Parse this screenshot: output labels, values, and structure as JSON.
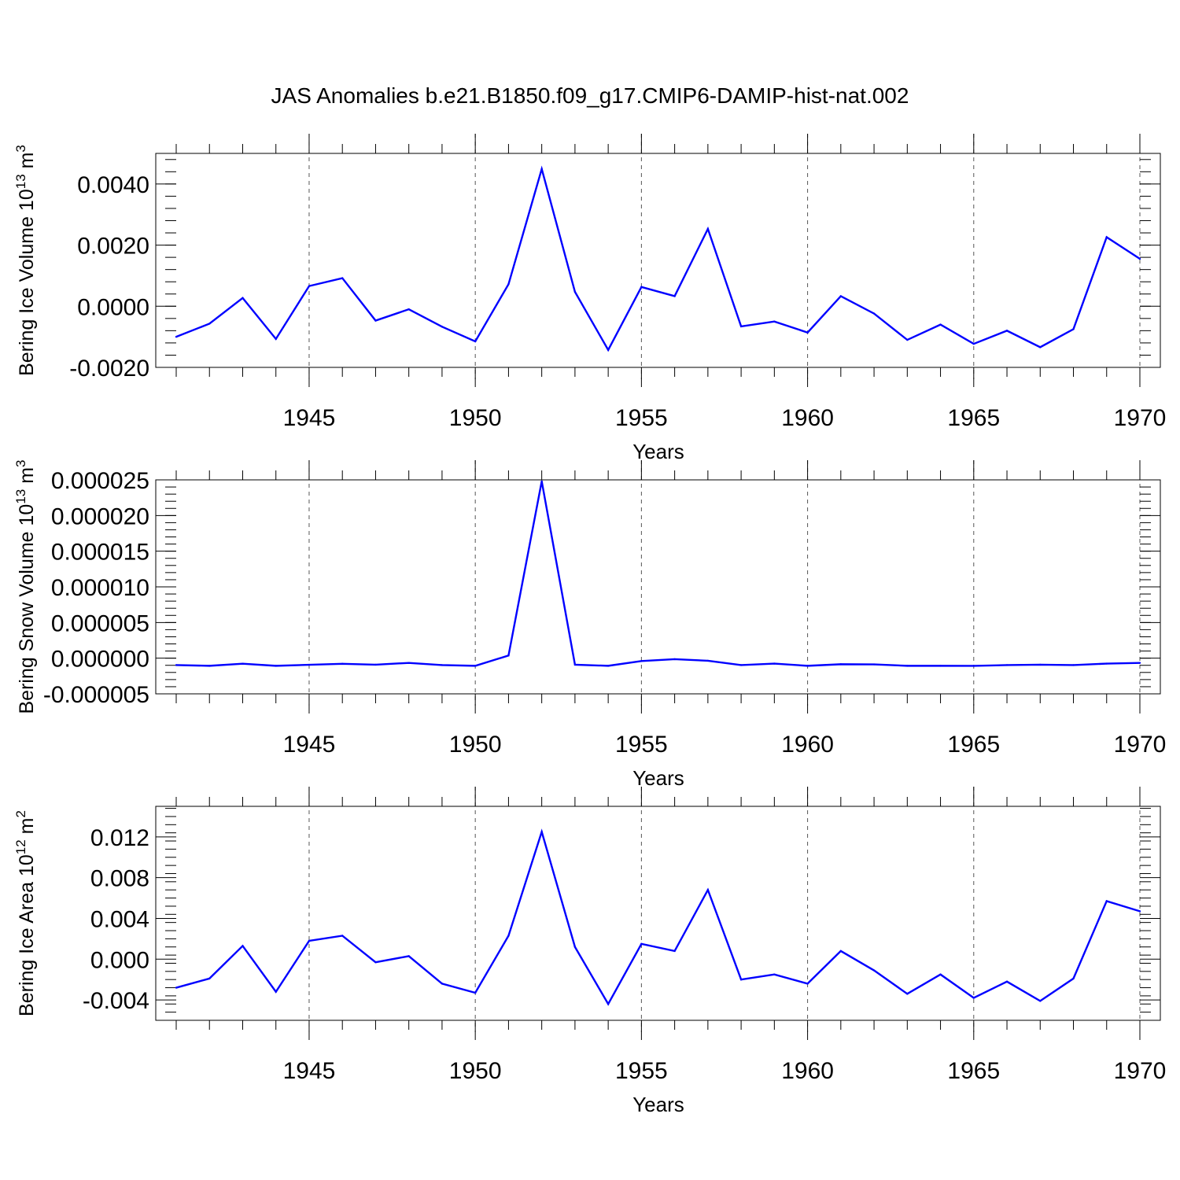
{
  "title": "JAS Anomalies b.e21.B1850.f09_g17.CMIP6-DAMIP-hist-nat.002",
  "line_color": "#0000ff",
  "chart_data": [
    {
      "type": "line",
      "ylabel_main": "Bering Ice Volume 10",
      "ylabel_sup": "13",
      "ylabel_unit": " m",
      "ylabel_unit_sup": "3",
      "xlabel": "Years",
      "xlim": [
        1941,
        1970
      ],
      "ylim": [
        -0.002,
        0.005
      ],
      "yticks": [
        -0.002,
        0.0,
        0.002,
        0.004
      ],
      "ytick_labels": [
        "-0.0020",
        "0.0000",
        "0.0020",
        "0.0040"
      ],
      "xticks": [
        1945,
        1950,
        1955,
        1960,
        1965,
        1970
      ],
      "xtick_labels": [
        "1945",
        "1950",
        "1955",
        "1960",
        "1965",
        "1970"
      ],
      "x": [
        1941,
        1942,
        1943,
        1944,
        1945,
        1946,
        1947,
        1948,
        1949,
        1950,
        1951,
        1952,
        1953,
        1954,
        1955,
        1956,
        1957,
        1958,
        1959,
        1960,
        1961,
        1962,
        1963,
        1964,
        1965,
        1966,
        1967,
        1968,
        1969,
        1970
      ],
      "values": [
        -0.001,
        -0.00057,
        0.00027,
        -0.00107,
        0.00066,
        0.00092,
        -0.00047,
        -0.0001,
        -0.00067,
        -0.00115,
        0.00072,
        0.00449,
        0.00047,
        -0.00143,
        0.00063,
        0.00033,
        0.00253,
        -0.00066,
        -0.0005,
        -0.00086,
        0.00033,
        -0.00024,
        -0.0011,
        -0.0006,
        -0.00123,
        -0.0008,
        -0.00134,
        -0.00075,
        0.00226,
        0.00155
      ]
    },
    {
      "type": "line",
      "ylabel_main": "Bering Snow Volume 10",
      "ylabel_sup": "13",
      "ylabel_unit": " m",
      "ylabel_unit_sup": "3",
      "xlabel": "Years",
      "xlim": [
        1941,
        1970
      ],
      "ylim": [
        -5e-06,
        2.5e-05
      ],
      "yticks": [
        -5e-06,
        0.0,
        5e-06,
        1e-05,
        1.5e-05,
        2e-05,
        2.5e-05
      ],
      "ytick_labels": [
        "-0.000005",
        "0.000000",
        "0.000005",
        "0.000010",
        "0.000015",
        "0.000020",
        "0.000025"
      ],
      "xticks": [
        1945,
        1950,
        1955,
        1960,
        1965,
        1970
      ],
      "xtick_labels": [
        "1945",
        "1950",
        "1955",
        "1960",
        "1965",
        "1970"
      ],
      "x": [
        1941,
        1942,
        1943,
        1944,
        1945,
        1946,
        1947,
        1948,
        1949,
        1950,
        1951,
        1952,
        1953,
        1954,
        1955,
        1956,
        1957,
        1958,
        1959,
        1960,
        1961,
        1962,
        1963,
        1964,
        1965,
        1966,
        1967,
        1968,
        1969,
        1970
      ],
      "values": [
        -9.7e-07,
        -1.07e-06,
        -7.7e-07,
        -1.07e-06,
        -9.3e-07,
        -7.9e-07,
        -9.1e-07,
        -6.6e-07,
        -9.7e-07,
        -1.07e-06,
        3.7e-07,
        2.48e-05,
        -9.1e-07,
        -1.07e-06,
        -4e-07,
        -1.4e-07,
        -3.6e-07,
        -9.7e-07,
        -7.6e-07,
        -1.07e-06,
        -8.5e-07,
        -8.7e-07,
        -1.07e-06,
        -1.07e-06,
        -1.08e-06,
        -9.7e-07,
        -9.1e-07,
        -9.7e-07,
        -7.6e-07,
        -6.6e-07
      ]
    },
    {
      "type": "line",
      "ylabel_main": "Bering Ice Area 10",
      "ylabel_sup": "12",
      "ylabel_unit": " m",
      "ylabel_unit_sup": "2",
      "xlabel": "Years",
      "xlim": [
        1941,
        1970
      ],
      "ylim": [
        -0.006,
        0.015
      ],
      "yticks": [
        -0.004,
        0.0,
        0.004,
        0.008,
        0.012
      ],
      "ytick_labels": [
        "-0.004",
        "0.000",
        "0.004",
        "0.008",
        "0.012"
      ],
      "xticks": [
        1945,
        1950,
        1955,
        1960,
        1965,
        1970
      ],
      "xtick_labels": [
        "1945",
        "1950",
        "1955",
        "1960",
        "1965",
        "1970"
      ],
      "x": [
        1941,
        1942,
        1943,
        1944,
        1945,
        1946,
        1947,
        1948,
        1949,
        1950,
        1951,
        1952,
        1953,
        1954,
        1955,
        1956,
        1957,
        1958,
        1959,
        1960,
        1961,
        1962,
        1963,
        1964,
        1965,
        1966,
        1967,
        1968,
        1969,
        1970
      ],
      "values": [
        -0.0028,
        -0.0019,
        0.0013,
        -0.0032,
        0.0018,
        0.0023,
        -0.0003,
        0.0003,
        -0.0024,
        -0.0033,
        0.0023,
        0.0125,
        0.0012,
        -0.0044,
        0.0015,
        0.0008,
        0.0068,
        -0.002,
        -0.0015,
        -0.0024,
        0.0008,
        -0.0011,
        -0.0034,
        -0.0015,
        -0.0038,
        -0.0022,
        -0.0041,
        -0.0019,
        0.0057,
        0.0047
      ]
    }
  ]
}
